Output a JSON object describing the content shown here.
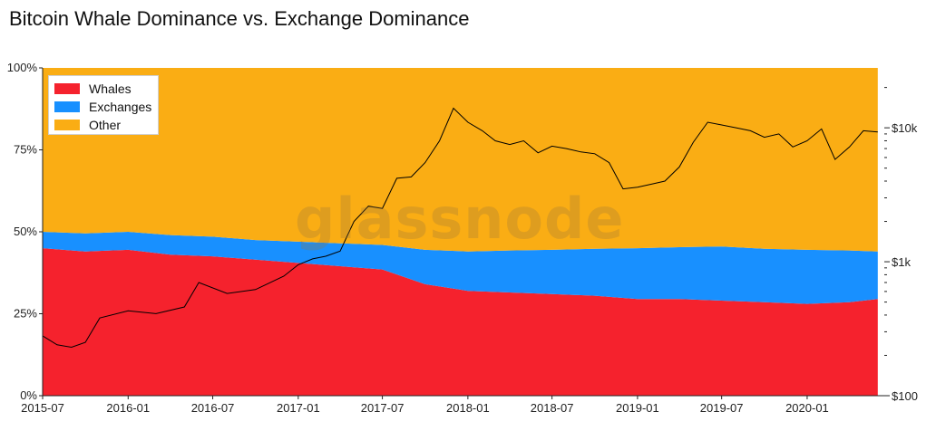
{
  "chart_data": {
    "type": "area",
    "title": "Bitcoin Whale Dominance vs. Exchange Dominance",
    "stacked": true,
    "x": [
      "2015-07",
      "2015-10",
      "2016-01",
      "2016-04",
      "2016-07",
      "2016-10",
      "2017-01",
      "2017-04",
      "2017-07",
      "2017-10",
      "2018-01",
      "2018-04",
      "2018-07",
      "2018-10",
      "2019-01",
      "2019-04",
      "2019-07",
      "2019-10",
      "2020-01",
      "2020-04",
      "2020-06"
    ],
    "x_ticks": [
      "2015-07",
      "2016-01",
      "2016-07",
      "2017-01",
      "2017-07",
      "2018-01",
      "2018-07",
      "2019-01",
      "2019-07",
      "2020-01"
    ],
    "y_ticks": [
      "0%",
      "25%",
      "50%",
      "75%",
      "100%"
    ],
    "y_right_ticks": [
      "$100",
      "$1k",
      "$10k"
    ],
    "ylim": [
      0,
      100
    ],
    "y_right_scale": "log",
    "y_right_lim": [
      100,
      28000
    ],
    "legend_position": "top-left",
    "series": [
      {
        "name": "Whales",
        "color": "#f5222d",
        "values": [
          45.0,
          44.0,
          44.5,
          43.0,
          42.5,
          41.5,
          40.5,
          39.5,
          38.5,
          34.0,
          32.0,
          31.5,
          31.0,
          30.5,
          29.5,
          29.5,
          29.0,
          28.5,
          28.0,
          28.5,
          29.5
        ]
      },
      {
        "name": "Exchanges",
        "color": "#1890ff",
        "values": [
          5.0,
          5.5,
          5.5,
          6.0,
          6.0,
          6.0,
          6.5,
          7.0,
          7.5,
          10.5,
          12.0,
          12.8,
          13.5,
          14.3,
          15.5,
          15.8,
          16.5,
          16.3,
          16.5,
          15.8,
          14.5
        ]
      },
      {
        "name": "Other",
        "color": "#faad14",
        "values": [
          50.0,
          50.5,
          50.0,
          51.0,
          51.5,
          52.5,
          53.0,
          53.5,
          54.0,
          55.5,
          56.0,
          55.7,
          55.5,
          55.2,
          55.0,
          54.7,
          54.5,
          55.2,
          55.5,
          55.7,
          56.0
        ]
      }
    ],
    "price_series": {
      "color": "#000000",
      "x": [
        "2015-07",
        "2015-08",
        "2015-09",
        "2015-10",
        "2015-11",
        "2016-01",
        "2016-03",
        "2016-05",
        "2016-06",
        "2016-08",
        "2016-10",
        "2016-12",
        "2017-01",
        "2017-02",
        "2017-03",
        "2017-04",
        "2017-05",
        "2017-06",
        "2017-07",
        "2017-08",
        "2017-09",
        "2017-10",
        "2017-11",
        "2017-12",
        "2018-01",
        "2018-02",
        "2018-03",
        "2018-04",
        "2018-05",
        "2018-06",
        "2018-07",
        "2018-08",
        "2018-09",
        "2018-10",
        "2018-11",
        "2018-12",
        "2019-01",
        "2019-02",
        "2019-03",
        "2019-04",
        "2019-05",
        "2019-06",
        "2019-07",
        "2019-08",
        "2019-09",
        "2019-10",
        "2019-11",
        "2019-12",
        "2020-01",
        "2020-02",
        "2020-03",
        "2020-04",
        "2020-05",
        "2020-06"
      ],
      "values": [
        280,
        240,
        230,
        250,
        380,
        430,
        410,
        460,
        700,
        580,
        620,
        780,
        950,
        1050,
        1100,
        1200,
        2000,
        2600,
        2500,
        4200,
        4300,
        5500,
        8000,
        14000,
        11000,
        9500,
        8000,
        7500,
        8000,
        6500,
        7300,
        7000,
        6600,
        6400,
        5500,
        3500,
        3600,
        3800,
        4000,
        5100,
        7800,
        11000,
        10500,
        10000,
        9500,
        8500,
        9000,
        7200,
        8000,
        9800,
        5800,
        7200,
        9500,
        9300
      ]
    }
  },
  "watermark": "glassnode"
}
